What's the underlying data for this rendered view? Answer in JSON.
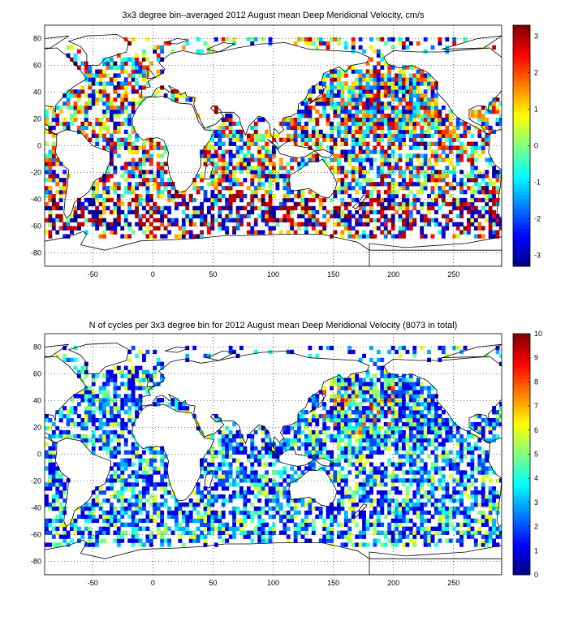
{
  "chart_data": [
    {
      "type": "heatmap",
      "title": "3x3 degree bin–averaged 2012 August mean Deep Meridional Velocity, cm/s",
      "xlim": [
        -90,
        290
      ],
      "ylim": [
        -90,
        90
      ],
      "x_ticks": [
        -50,
        0,
        50,
        100,
        150,
        200,
        250
      ],
      "y_ticks": [
        -80,
        -60,
        -40,
        -20,
        0,
        20,
        40,
        60,
        80
      ],
      "grid": "dotted",
      "bin_size_deg": 3,
      "colormap": "jet",
      "colorbar": {
        "range": [
          -3.3,
          3.3
        ],
        "ticks": [
          3,
          2,
          1,
          0,
          -1,
          -2,
          -3
        ]
      }
    },
    {
      "type": "heatmap",
      "title": "N of cycles per 3x3 degree bin for 2012 August mean Deep Meridional Velocity (8073 in total)",
      "xlim": [
        -90,
        290
      ],
      "ylim": [
        -90,
        90
      ],
      "x_ticks": [
        -50,
        0,
        50,
        100,
        150,
        200,
        250
      ],
      "y_ticks": [
        -80,
        -60,
        -40,
        -20,
        0,
        20,
        40,
        60,
        80
      ],
      "grid": "dotted",
      "bin_size_deg": 3,
      "colormap": "jet",
      "colorbar": {
        "range": [
          0,
          10
        ],
        "ticks": [
          10,
          9,
          8,
          7,
          6,
          5,
          4,
          3,
          2,
          1,
          0
        ]
      }
    }
  ]
}
